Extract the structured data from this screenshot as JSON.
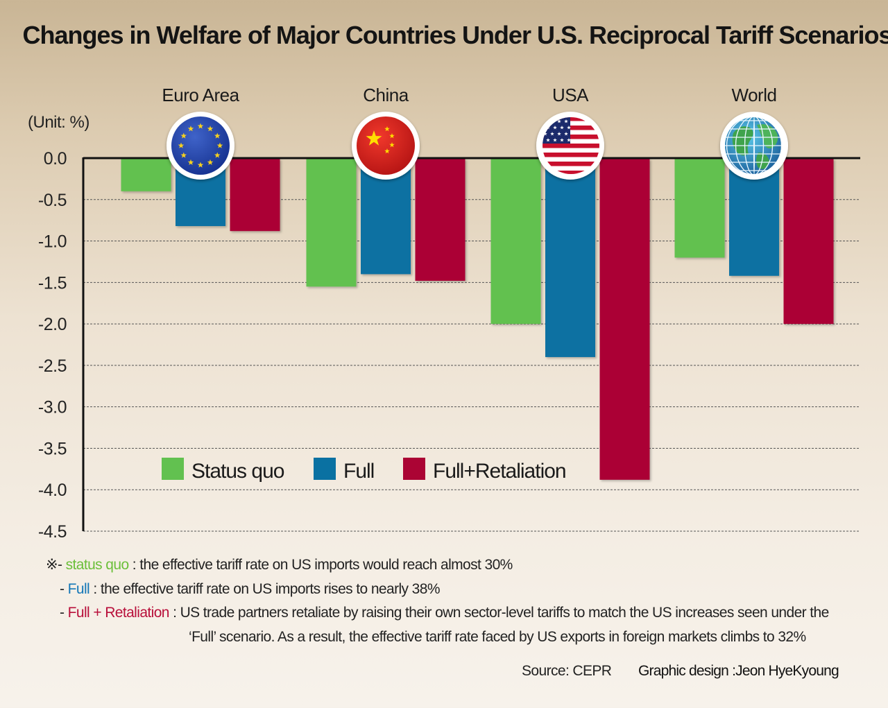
{
  "title": "Changes in Welfare of Major Countries Under U.S. Reciprocal Tariff Scenarios",
  "unit_label": "(Unit: %)",
  "chart_data": {
    "type": "bar",
    "title": "Changes in Welfare of Major Countries Under U.S. Reciprocal Tariff Scenarios",
    "ylabel": "(Unit: %)",
    "xlabel": "",
    "categories": [
      "Euro Area",
      "China",
      "USA",
      "World"
    ],
    "category_icons": [
      "eu-flag-icon",
      "china-flag-icon",
      "usa-flag-icon",
      "globe-icon"
    ],
    "series": [
      {
        "name": "Status quo",
        "color": "#62c150",
        "values": [
          -0.4,
          -1.55,
          -2.0,
          -1.2
        ]
      },
      {
        "name": "Full",
        "color": "#0a71a2",
        "values": [
          -0.82,
          -1.4,
          -2.4,
          -1.42
        ]
      },
      {
        "name": "Full+Retaliation",
        "color": "#ab0434",
        "values": [
          -0.88,
          -1.48,
          -3.88,
          -2.0
        ]
      }
    ],
    "ylim": [
      -4.5,
      0.0
    ],
    "yticks": [
      "0.0",
      "-0.5",
      "-1.0",
      "-1.5",
      "-2.0",
      "-2.5",
      "-3.0",
      "-3.5",
      "-4.0",
      "-4.5"
    ],
    "grid": true,
    "legend_position": "bottom-left inside"
  },
  "notes": {
    "prefix": "※-",
    "status_quo_term": "status quo",
    "status_quo_text": ": the effective tariff rate on US imports would reach almost 30%",
    "dash": "-",
    "full_term": "Full",
    "full_text": ": the effective tariff rate on US imports rises to nearly 38%",
    "retaliation_term": "Full + Retaliation",
    "retaliation_text_1": ": US trade partners retaliate by raising their own sector-level tariffs to match the US increases seen under the",
    "retaliation_text_2": "‘Full’ scenario. As a result, the effective tariff rate faced by US exports in foreign markets climbs to 32%"
  },
  "source": "Source: CEPR",
  "credit": "Graphic design :Jeon HyeKyoung"
}
